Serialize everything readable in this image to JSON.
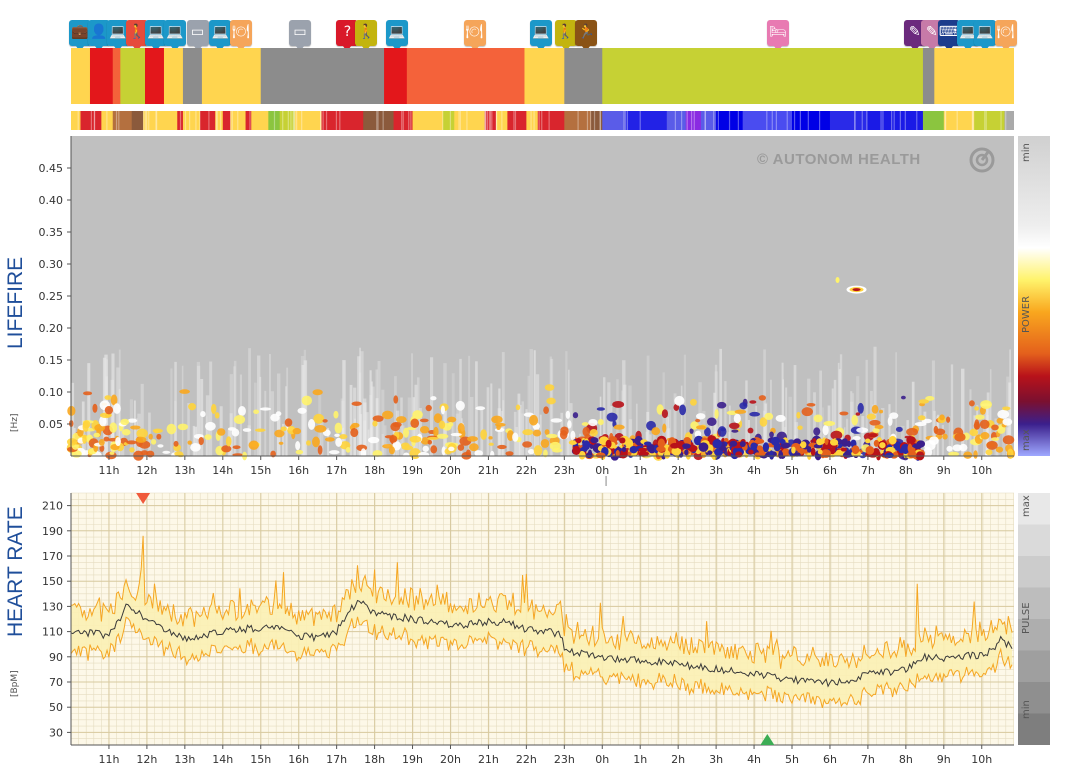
{
  "brand": {
    "watermark": "© AUTONOM HEALTH"
  },
  "activity": {
    "segments": [
      {
        "start": 0,
        "end": 0.5,
        "color": "#ffd54f"
      },
      {
        "start": 0.5,
        "end": 1.1,
        "color": "#e3171b"
      },
      {
        "start": 1.1,
        "end": 1.3,
        "color": "#f4623a"
      },
      {
        "start": 1.3,
        "end": 1.95,
        "color": "#c6d134"
      },
      {
        "start": 1.95,
        "end": 2.45,
        "color": "#e3171b"
      },
      {
        "start": 2.45,
        "end": 2.95,
        "color": "#ffd54f"
      },
      {
        "start": 2.95,
        "end": 3.45,
        "color": "#8c8c8c"
      },
      {
        "start": 3.45,
        "end": 5.0,
        "color": "#ffd54f"
      },
      {
        "start": 5.0,
        "end": 8.25,
        "color": "#8c8c8c"
      },
      {
        "start": 8.25,
        "end": 8.85,
        "color": "#e3171b"
      },
      {
        "start": 8.85,
        "end": 11.95,
        "color": "#f4623a"
      },
      {
        "start": 11.95,
        "end": 13.0,
        "color": "#ffd54f"
      },
      {
        "start": 13.0,
        "end": 14.0,
        "color": "#8c8c8c"
      },
      {
        "start": 14.0,
        "end": 22.45,
        "color": "#c6d134"
      },
      {
        "start": 22.45,
        "end": 22.75,
        "color": "#8c8c8c"
      },
      {
        "start": 22.75,
        "end": 24.85,
        "color": "#ffd54f"
      }
    ],
    "icons": [
      {
        "t": 0.05,
        "color": "#1c98c9",
        "glyph": "💼"
      },
      {
        "t": 0.55,
        "color": "#1c98c9",
        "glyph": "👤"
      },
      {
        "t": 1.05,
        "color": "#1c98c9",
        "glyph": "💻"
      },
      {
        "t": 1.55,
        "color": "#e64b3c",
        "glyph": "🚶"
      },
      {
        "t": 2.05,
        "color": "#1c98c9",
        "glyph": "💻"
      },
      {
        "t": 2.55,
        "color": "#1c98c9",
        "glyph": "💻"
      },
      {
        "t": 3.15,
        "color": "#9ba2ad",
        "glyph": "▭"
      },
      {
        "t": 3.75,
        "color": "#1c98c9",
        "glyph": "💻"
      },
      {
        "t": 4.3,
        "color": "#f5a55a",
        "glyph": "🍽"
      },
      {
        "t": 5.85,
        "color": "#9ba2ad",
        "glyph": "▭"
      },
      {
        "t": 7.1,
        "color": "#d9192a",
        "glyph": "?"
      },
      {
        "t": 7.6,
        "color": "#c3b40f",
        "glyph": "🚶"
      },
      {
        "t": 8.4,
        "color": "#1c98c9",
        "glyph": "💻"
      },
      {
        "t": 10.45,
        "color": "#f5a55a",
        "glyph": "🍽"
      },
      {
        "t": 12.2,
        "color": "#1c98c9",
        "glyph": "💻"
      },
      {
        "t": 12.85,
        "color": "#c3b40f",
        "glyph": "🚶"
      },
      {
        "t": 13.4,
        "color": "#8a5316",
        "glyph": "🏃"
      },
      {
        "t": 18.45,
        "color": "#e87ab2",
        "glyph": "🛏"
      },
      {
        "t": 22.05,
        "color": "#6b2a7d",
        "glyph": "✎"
      },
      {
        "t": 22.5,
        "color": "#c77aa8",
        "glyph": "✎"
      },
      {
        "t": 22.95,
        "color": "#1c3c8c",
        "glyph": "⌨"
      },
      {
        "t": 23.45,
        "color": "#1c98c9",
        "glyph": "💻"
      },
      {
        "t": 23.9,
        "color": "#1c98c9",
        "glyph": "💻"
      },
      {
        "t": 24.45,
        "color": "#f5a55a",
        "glyph": "🍽"
      }
    ]
  },
  "intensity": {
    "segments": [
      {
        "start": 0,
        "end": 0.25,
        "color": "#ffd54f"
      },
      {
        "start": 0.25,
        "end": 0.8,
        "color": "#d9252d"
      },
      {
        "start": 0.8,
        "end": 1.1,
        "color": "#ffd54f"
      },
      {
        "start": 1.1,
        "end": 1.6,
        "color": "#b4703f"
      },
      {
        "start": 1.6,
        "end": 1.9,
        "color": "#8b5a3c"
      },
      {
        "start": 1.9,
        "end": 2.8,
        "color": "#ffd54f"
      },
      {
        "start": 2.8,
        "end": 2.95,
        "color": "#d9252d"
      },
      {
        "start": 2.95,
        "end": 3.4,
        "color": "#ffd54f"
      },
      {
        "start": 3.4,
        "end": 3.8,
        "color": "#d9252d"
      },
      {
        "start": 3.8,
        "end": 4.0,
        "color": "#ffd54f"
      },
      {
        "start": 4.0,
        "end": 4.2,
        "color": "#d9252d"
      },
      {
        "start": 4.2,
        "end": 4.6,
        "color": "#ffd54f"
      },
      {
        "start": 4.6,
        "end": 4.75,
        "color": "#d9252d"
      },
      {
        "start": 4.75,
        "end": 5.2,
        "color": "#ffd54f"
      },
      {
        "start": 5.2,
        "end": 5.5,
        "color": "#8bc53f"
      },
      {
        "start": 5.5,
        "end": 5.9,
        "color": "#c6d134"
      },
      {
        "start": 5.9,
        "end": 6.6,
        "color": "#ffd54f"
      },
      {
        "start": 6.6,
        "end": 7.7,
        "color": "#d9252d"
      },
      {
        "start": 7.7,
        "end": 8.5,
        "color": "#8b5a3c"
      },
      {
        "start": 8.5,
        "end": 9.0,
        "color": "#d9252d"
      },
      {
        "start": 9.0,
        "end": 9.8,
        "color": "#ffd54f"
      },
      {
        "start": 9.8,
        "end": 10.1,
        "color": "#c6d134"
      },
      {
        "start": 10.1,
        "end": 10.9,
        "color": "#ffd54f"
      },
      {
        "start": 10.9,
        "end": 11.2,
        "color": "#d9252d"
      },
      {
        "start": 11.2,
        "end": 11.5,
        "color": "#ffd54f"
      },
      {
        "start": 11.5,
        "end": 12.0,
        "color": "#d9252d"
      },
      {
        "start": 12.0,
        "end": 12.3,
        "color": "#ffd54f"
      },
      {
        "start": 12.3,
        "end": 13.0,
        "color": "#d9252d"
      },
      {
        "start": 13.0,
        "end": 13.7,
        "color": "#b4703f"
      },
      {
        "start": 13.7,
        "end": 14.0,
        "color": "#8b5a3c"
      },
      {
        "start": 14.0,
        "end": 14.6,
        "color": "#5a5ce8"
      },
      {
        "start": 14.6,
        "end": 15.7,
        "color": "#2222e6"
      },
      {
        "start": 15.7,
        "end": 16.2,
        "color": "#5a5ce8"
      },
      {
        "start": 16.2,
        "end": 16.6,
        "color": "#8a2be2"
      },
      {
        "start": 16.6,
        "end": 17.0,
        "color": "#5a5ce8"
      },
      {
        "start": 17.0,
        "end": 17.7,
        "color": "#0000e6"
      },
      {
        "start": 17.7,
        "end": 19.0,
        "color": "#4a4cf0"
      },
      {
        "start": 19.0,
        "end": 20.0,
        "color": "#0000e6"
      },
      {
        "start": 20.0,
        "end": 21.0,
        "color": "#2a2ae8"
      },
      {
        "start": 21.0,
        "end": 22.45,
        "color": "#1a1ae6"
      },
      {
        "start": 22.45,
        "end": 23.0,
        "color": "#8bc53f"
      },
      {
        "start": 23.0,
        "end": 23.8,
        "color": "#ffd54f"
      },
      {
        "start": 23.8,
        "end": 24.6,
        "color": "#c6d134"
      },
      {
        "start": 24.6,
        "end": 24.85,
        "color": "#aaaaaa"
      }
    ]
  },
  "lifefire": {
    "side_label": "LIFEFIRE",
    "unit": "[Hz]",
    "scale_min": "min",
    "scale_power": "POWER",
    "scale_max": "max"
  },
  "heart_rate": {
    "side_label": "HEART RATE",
    "unit": "[BpM]",
    "scale_max": "max",
    "scale_pulse": "PULSE",
    "scale_min": "min"
  },
  "colors": {
    "panel_bg": "#c0c0c0",
    "hr_bg": "#fdf8e8",
    "hr_grid": "#e5dcc0",
    "band": "#fbefb4",
    "hr_line": "#3a3a3a",
    "band_edge": "#f5a623",
    "max_marker": "#f05a3b",
    "min_marker": "#3cad55"
  },
  "chart_data": [
    {
      "type": "heatmap",
      "title": "LIFEFIRE",
      "ylabel": "[Hz]",
      "x_ticks": [
        "11h",
        "12h",
        "13h",
        "14h",
        "15h",
        "16h",
        "17h",
        "18h",
        "19h",
        "20h",
        "21h",
        "22h",
        "23h",
        "0h",
        "1h",
        "2h",
        "3h",
        "4h",
        "5h",
        "6h",
        "7h",
        "8h",
        "9h",
        "10h"
      ],
      "y_ticks": [
        0.05,
        0.1,
        0.15,
        0.2,
        0.25,
        0.3,
        0.35,
        0.4,
        0.45
      ],
      "ylim": [
        0,
        0.5
      ],
      "xlim_hours_from_first_tick": [
        -1.0,
        23.85
      ],
      "color_scale": [
        "min",
        "POWER",
        "max"
      ],
      "hot_spots": [
        {
          "hour": "23h-0h",
          "freq_range": [
            0,
            0.03
          ],
          "power": "high"
        },
        {
          "hour": "0h-1h",
          "freq_range": [
            0,
            0.05
          ],
          "power": "max"
        },
        {
          "hour": "3h-4h",
          "freq_range": [
            0,
            0.05
          ],
          "power": "max"
        },
        {
          "hour": "5h-6h",
          "freq_range": [
            0,
            0.05
          ],
          "power": "high"
        },
        {
          "hour": "6h-7h",
          "freq_range": [
            0,
            0.04
          ],
          "power": "max"
        },
        {
          "hour": "6h40",
          "freq_range": [
            0.25,
            0.27
          ],
          "power": "high"
        }
      ]
    },
    {
      "type": "line",
      "title": "HEART RATE",
      "ylabel": "[BpM]",
      "x_ticks": [
        "11h",
        "12h",
        "13h",
        "14h",
        "15h",
        "16h",
        "17h",
        "18h",
        "19h",
        "20h",
        "21h",
        "22h",
        "23h",
        "0h",
        "1h",
        "2h",
        "3h",
        "4h",
        "5h",
        "6h",
        "7h",
        "8h",
        "9h",
        "10h"
      ],
      "y_ticks": [
        30,
        50,
        70,
        90,
        110,
        130,
        150,
        170,
        190,
        210
      ],
      "ylim": [
        20,
        220
      ],
      "hours": [
        0,
        0.5,
        1,
        1.3,
        1.5,
        1.8,
        2,
        2.5,
        3,
        3.5,
        4,
        4.5,
        5,
        5.5,
        6,
        6.5,
        7,
        7.3,
        7.6,
        8,
        8.5,
        9,
        9.5,
        10,
        10.5,
        11,
        11.5,
        12,
        12.5,
        12.9,
        13.0,
        13.5,
        14,
        14.5,
        15,
        15.5,
        16,
        16.5,
        17,
        17.5,
        18,
        18.5,
        19,
        19.5,
        20,
        20.5,
        21,
        21.5,
        22,
        22.3,
        22.5,
        23,
        23.5,
        24,
        24.3,
        24.5,
        24.85
      ],
      "series": [
        {
          "name": "",
          "values": [
            110,
            109,
            107,
            120,
            132,
            125,
            118,
            112,
            105,
            107,
            110,
            112,
            113,
            112,
            107,
            105,
            110,
            125,
            134,
            125,
            122,
            120,
            117,
            115,
            116,
            118,
            117,
            112,
            110,
            108,
            96,
            92,
            90,
            88,
            87,
            86,
            84,
            82,
            80,
            78,
            76,
            74,
            72,
            70,
            69,
            72,
            76,
            78,
            80,
            85,
            90,
            88,
            90,
            92,
            95,
            105,
            95
          ]
        }
      ],
      "band_upper_offset": 12,
      "band_lower_offset": 12,
      "markers": [
        {
          "type": "max",
          "hour": 1.9
        },
        {
          "type": "min",
          "hour": 18.35
        }
      ]
    }
  ]
}
